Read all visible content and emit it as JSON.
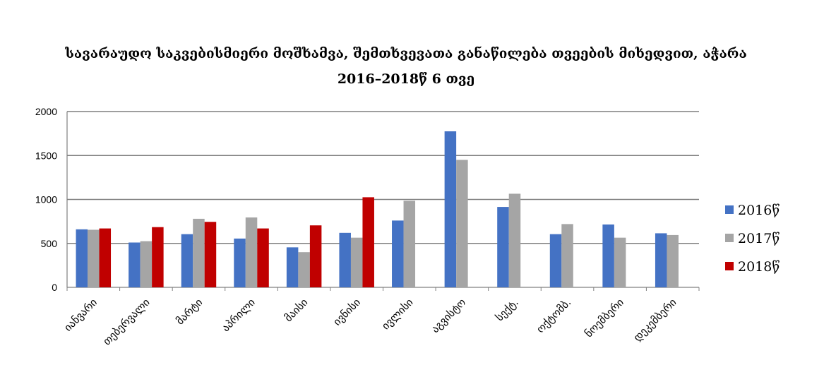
{
  "chart_data": {
    "type": "bar",
    "title": "სავარაუდო  საკვებისმიერი მოშხამვა, შემთხვევათა განაწილება თვეების მიხედვით, აჭარა",
    "subtitle": "2016–2018წ 6 თვე",
    "xlabel": "",
    "ylabel": "",
    "ylim": [
      0,
      2000
    ],
    "yticks": [
      "0",
      "500",
      "1000",
      "1500",
      "2000"
    ],
    "grid": true,
    "legend_position": "right",
    "categories": [
      "იანვარი",
      "თებერვალი",
      "მარტი",
      "აპრილი",
      "მაისი",
      "ივნისი",
      "ივლისი",
      "აგვისტო",
      "სექტ.",
      "ოქტომბ.",
      "ნოემბერი",
      "დეკემბერი"
    ],
    "series": [
      {
        "name": "2016წ",
        "color": "#4472C4",
        "values": [
          660,
          510,
          605,
          555,
          455,
          620,
          760,
          1775,
          915,
          605,
          715,
          615
        ]
      },
      {
        "name": "2017წ",
        "color": "#A5A5A5",
        "values": [
          655,
          525,
          780,
          795,
          400,
          565,
          985,
          1450,
          1065,
          720,
          565,
          595
        ]
      },
      {
        "name": "2018წ",
        "color": "#C00000",
        "values": [
          670,
          685,
          745,
          670,
          705,
          1025,
          null,
          null,
          null,
          null,
          null,
          null
        ]
      }
    ]
  }
}
